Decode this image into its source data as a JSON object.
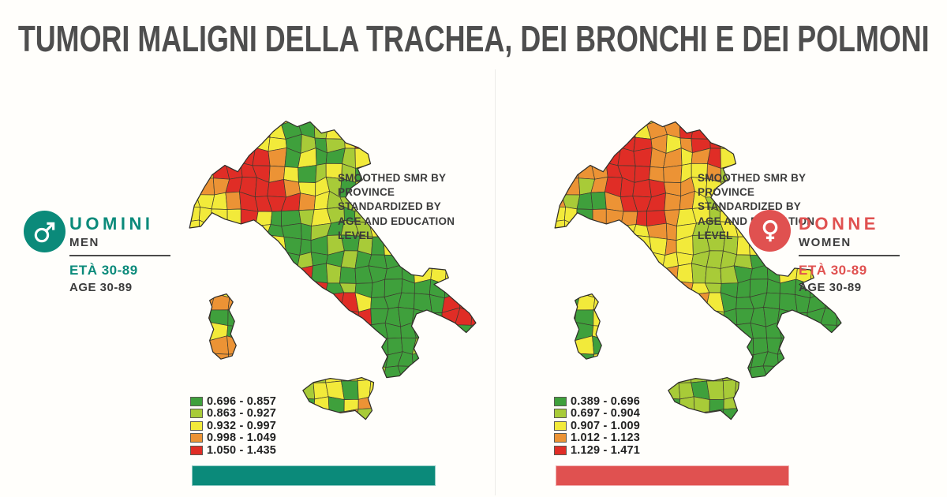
{
  "header": {
    "title": "TUMORI MALIGNI DELLA TRACHEA, DEI BRONCHI E DEI POLMONI"
  },
  "panels": {
    "men": {
      "label_it": "UOMINI",
      "label_en": "MEN",
      "age_it": "ETÀ 30-89",
      "age_en": "AGE 30-89",
      "accent": "#0b8a7a",
      "icon": "male-symbol"
    },
    "women": {
      "label_it": "DONNE",
      "label_en": "WOMEN",
      "age_it": "ETÀ 30-89",
      "age_en": "AGE 30-89",
      "accent": "#e05150",
      "icon": "female-symbol"
    }
  },
  "chart_data": {
    "type": "choropleth",
    "title": "TUMORI MALIGNI DELLA TRACHEA, DEI BRONCHI E DEI POLMONI",
    "note": "SMOOTHED SMR BY PROVINCE STANDARDIZED BY AGE AND EDUCATION LEVEL",
    "geography": "Italy, provinces",
    "legend_position": "bottom-left",
    "palette_letters": {
      "G": 0,
      "L": 1,
      "Y": 2,
      "O": 3,
      "R": 4
    },
    "maps": {
      "men": {
        "label": "UOMINI / MEN",
        "age_range": "30-89",
        "classes": [
          {
            "range": "0.696 - 0.857",
            "color": "#3fa03c"
          },
          {
            "range": "0.863 - 0.927",
            "color": "#a8cb38"
          },
          {
            "range": "0.932 - 0.997",
            "color": "#f2ea3a"
          },
          {
            "range": "0.998 - 1.049",
            "color": "#ec9335"
          },
          {
            "range": "1.050 - 1.435",
            "color": "#e02d26"
          }
        ],
        "grid": [
          "YYYYYGGYGGGGYYYYYYYYY",
          "YYOORRYGGLYYYYYYYYYYY",
          "YOORRYYGLGLYRYYYYYYYY",
          "YYORRROGYGGLYYYYYYYYY",
          "YYRRRROYGLYLGYYYYYYYY",
          "YOORRRROYYLGYYYYYYYYY",
          "YYYORRRROYLLYYYYYYYYY",
          "YYYYRYGGLYLGLYYYYYYYY",
          "YYYYYYGGGLGLLYYYYYYYY",
          "YYYYYOYGGGLGLGYYYYYYY",
          "YYYYYYYGLGGLGGGGYYYYY",
          "YYYYYYYRRGLGGGGGYYYYY",
          "YYYYYYYYRRGLGGGGGGGYY",
          "OOOOYYYYYRRRYGGGGGRRR",
          "OOGGYYYYYYRRRGGGGGRRR",
          "OYYGYYYYYYYRGGGGGGGGG",
          "OOOOYYYYYYYYGGGGLGGGG",
          "YOOOYYYYYYYYYGGGGGGGG",
          "YYYYYYYYLLYYYLGGGGGGG",
          "YYYYYYYYLYYGYYLGGGGGG",
          "YYYYYYYYGYGYOYYGGGGGG",
          "YYYYYYYYYYOOLGYGGGGGG",
          "YYYYYYYYYYYYYYYGGGGGG"
        ]
      },
      "women": {
        "label": "DONNE / WOMEN",
        "age_range": "30-89",
        "classes": [
          {
            "range": "0.389 - 0.696",
            "color": "#3fa03c"
          },
          {
            "range": "0.697 - 0.904",
            "color": "#a8cb38"
          },
          {
            "range": "0.907 - 1.009",
            "color": "#f2ea3a"
          },
          {
            "range": "1.012 - 1.123",
            "color": "#ec9335"
          },
          {
            "range": "1.129 - 1.471",
            "color": "#e02d26"
          }
        ],
        "grid": [
          "YYYYRRYYYRRYYRYYYYYYY",
          "YYORRRYOORROYRYYYYYYY",
          "YROORRROYORRYRYYYYYYY",
          "RRYORRROOYORYYYYYYYYY",
          "ROOORRROOYYOLLYYYYYYY",
          "OOLORRRROOYYLGYYYYYYY",
          "OLGGORRROOYLYYYYYYYYY",
          "YYGOOORROYYLYYYYYYYYY",
          "YYYYOYYOOYLLYYYYYYYYY",
          "YYYYOOYYOYLLLYYYYYYYY",
          "YYYYYYOYYYLLLLGYYYYYY",
          "YYYYYYYOOYLLLGGGYYYYY",
          "YYYYYYYYROYLGGGGGGGYY",
          "GGYYYYYYYROYGGGGGGGGG",
          "GGGYYYYYYYRLGGGGGGGGG",
          "GYGYYYYYYYYLGGGGGGGGG",
          "GGYGYYYYYYYYGGGGGGGGG",
          "YGGYYYYYYYYYYGGGGGGGG",
          "YYYYYYYYLLLLLGGGGGGGG",
          "YYYYYYYYLLGLLLGGGGGGG",
          "YYYYYYYYGLLGLLGGGGGGG",
          "YYYYYYYYYLLGGLGGGGGGG",
          "YYYYYYYYYYLLLLLGGGGGG"
        ]
      }
    }
  }
}
